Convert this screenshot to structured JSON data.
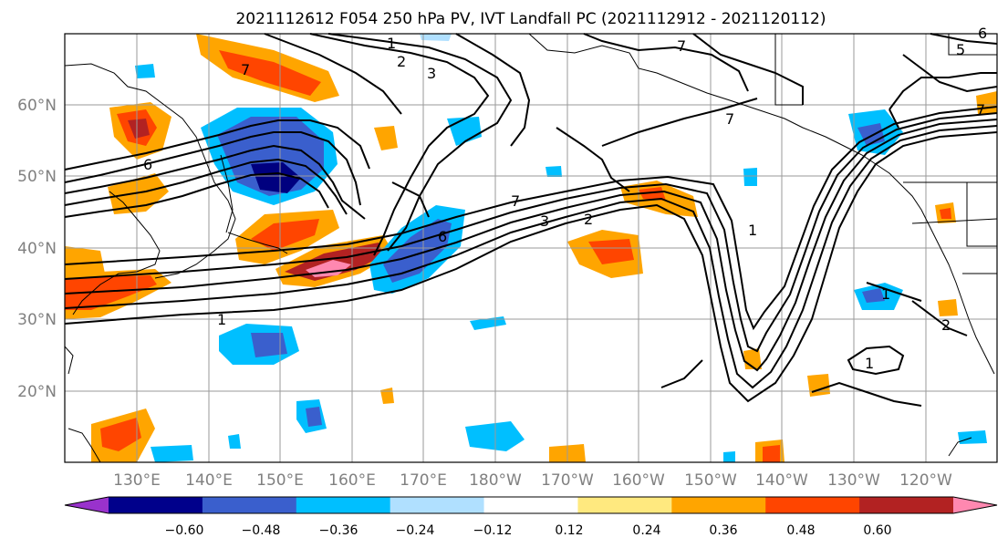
{
  "title": "2021112612 F054 250 hPa PV, IVT Landfall PC (2021112912 - 2021120112)",
  "map": {
    "lon_labels": [
      "130°E",
      "140°E",
      "150°E",
      "160°E",
      "170°E",
      "180°W",
      "170°W",
      "160°W",
      "150°W",
      "140°W",
      "130°W",
      "120°W"
    ],
    "lat_labels": [
      "60°N",
      "50°N",
      "40°N",
      "30°N",
      "20°N"
    ],
    "grid": true,
    "land_color": "#ffffff",
    "coast_color": "#000000"
  },
  "contours": {
    "label_values": [
      "1",
      "2",
      "3",
      "7",
      "7",
      "6",
      "7",
      "3",
      "2",
      "1",
      "6",
      "1",
      "7",
      "7",
      "6",
      "1",
      "1",
      "2",
      "5"
    ]
  },
  "shading": {
    "neg_deep": "#00007f",
    "neg_mid": "#3a5fcd",
    "neg_light": "#00bfff",
    "neg_pale": "#b0e0ff",
    "pos_yellow": "#ffe97f",
    "pos_orange": "#ffa500",
    "pos_red": "#ff4500",
    "pos_darkred": "#b22222",
    "pos_pink": "#ff88b0"
  },
  "colorbar": {
    "ticks": [
      "−0.60",
      "−0.48",
      "−0.36",
      "−0.24",
      "−0.12",
      "0.12",
      "0.24",
      "0.36",
      "0.48",
      "0.60"
    ],
    "colors": [
      "#9932cc",
      "#00008b",
      "#3a5fcd",
      "#00bfff",
      "#b0e0ff",
      "#ffffff",
      "#ffe97f",
      "#ffa500",
      "#ff4500",
      "#b22222",
      "#ff88b0"
    ]
  }
}
